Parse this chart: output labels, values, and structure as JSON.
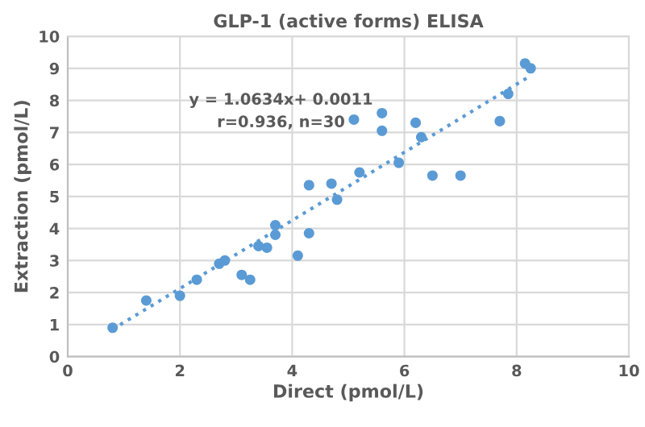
{
  "chart_data": {
    "type": "scatter",
    "title": "GLP-1 (active forms) ELISA",
    "xlabel": "Direct (pmol/L)",
    "ylabel": "Extraction (pmol/L)",
    "annotations": [
      "y = 1.0634x+ 0.0011",
      "r=0.936, n=30"
    ],
    "series": [
      {
        "color": "#5b9bd5",
        "marker": "circle",
        "x": [
          0.8,
          1.4,
          2.0,
          2.3,
          2.7,
          2.8,
          3.1,
          3.25,
          3.4,
          3.55,
          3.7,
          3.7,
          4.1,
          4.3,
          4.3,
          4.7,
          4.8,
          5.1,
          5.2,
          5.6,
          5.6,
          5.9,
          6.2,
          6.3,
          6.5,
          7.0,
          7.7,
          7.85,
          8.15,
          8.25
        ],
        "values": [
          0.9,
          1.75,
          1.9,
          2.4,
          2.9,
          3.0,
          2.55,
          2.4,
          3.45,
          3.4,
          3.8,
          4.1,
          3.15,
          3.85,
          5.35,
          5.4,
          4.9,
          7.4,
          5.75,
          7.6,
          7.05,
          6.05,
          7.3,
          6.85,
          5.65,
          5.65,
          7.35,
          8.2,
          9.15,
          9.0
        ]
      },
      {
        "type": "line",
        "color": "#5b9bd5",
        "line_style": "dotted",
        "x": [
          0.8,
          8.25
        ],
        "values": [
          0.85,
          8.77
        ]
      }
    ],
    "xlim": [
      0,
      10
    ],
    "xticks": [
      0,
      2,
      4,
      6,
      8,
      10
    ],
    "ylim": [
      0,
      10
    ],
    "yticks": [
      0,
      1,
      2,
      3,
      4,
      5,
      6,
      7,
      8,
      9,
      10
    ],
    "grid": true,
    "legend": false
  }
}
